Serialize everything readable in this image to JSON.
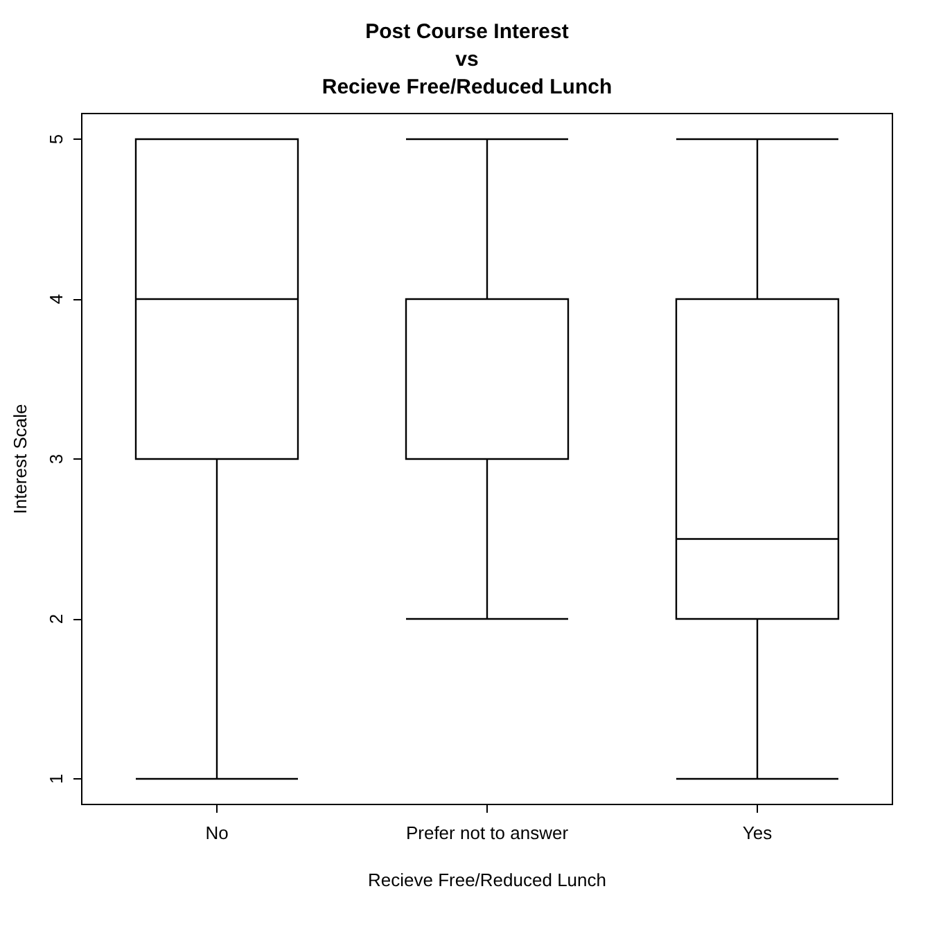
{
  "chart_data": {
    "type": "box",
    "title": "Post Course Interest\nvs\nRecieve Free/Reduced Lunch",
    "xlabel": "Recieve Free/Reduced Lunch",
    "ylabel": "Interest Scale",
    "categories": [
      "No",
      "Prefer not to answer",
      "Yes"
    ],
    "boxes": [
      {
        "low": 1,
        "q1": 3,
        "median": 4,
        "q3": 5,
        "high": 5
      },
      {
        "low": 2,
        "q1": 3,
        "median": 4,
        "q3": 4,
        "high": 5
      },
      {
        "low": 1,
        "q1": 2,
        "median": 2.5,
        "q3": 4,
        "high": 5
      }
    ],
    "ylim": [
      0.84,
      5.16
    ],
    "yticks": [
      1,
      2,
      3,
      4,
      5
    ]
  }
}
